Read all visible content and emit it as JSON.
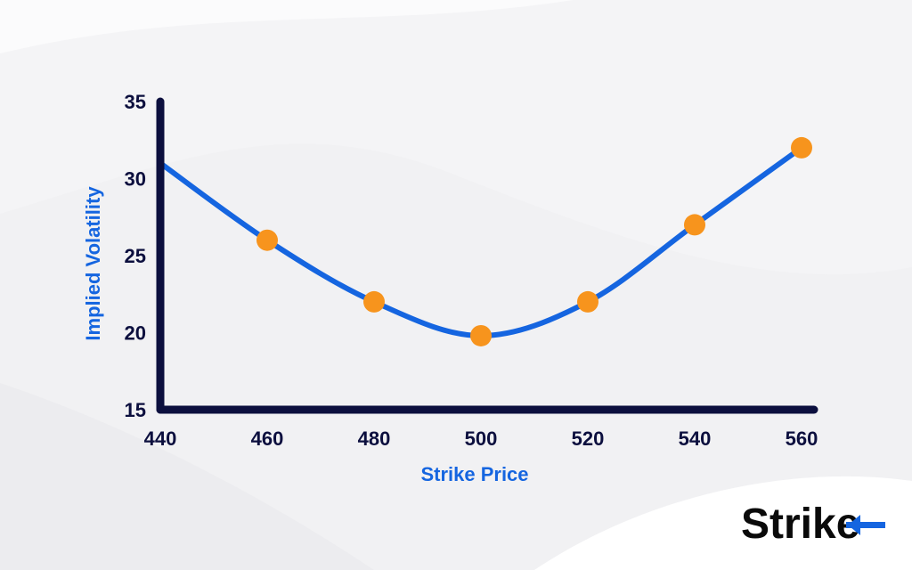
{
  "chart_data": {
    "type": "line",
    "xlabel": "Strike Price",
    "ylabel": "Implied Volatility",
    "xlim": [
      440,
      560
    ],
    "ylim": [
      15,
      35
    ],
    "x_ticks": [
      "440",
      "460",
      "480",
      "500",
      "520",
      "540",
      "560"
    ],
    "y_ticks": [
      "35",
      "30",
      "25",
      "20",
      "15"
    ],
    "curve": {
      "x": [
        440,
        460,
        480,
        500,
        520,
        540,
        560
      ],
      "y": [
        31,
        26,
        22,
        19.8,
        22,
        27,
        32
      ]
    },
    "points": {
      "x": [
        460,
        480,
        500,
        520,
        540,
        560
      ],
      "y": [
        26,
        22,
        19.8,
        22,
        27,
        32
      ]
    },
    "colors": {
      "line": "#1565e0",
      "markers": "#f7941d",
      "axes": "#0c0f3e",
      "axis_title": "#1565e0"
    },
    "grid": false,
    "legend": "none"
  },
  "logo": {
    "text": "Strike",
    "icon": "arrow-left-icon",
    "accent": "#1565e0"
  }
}
